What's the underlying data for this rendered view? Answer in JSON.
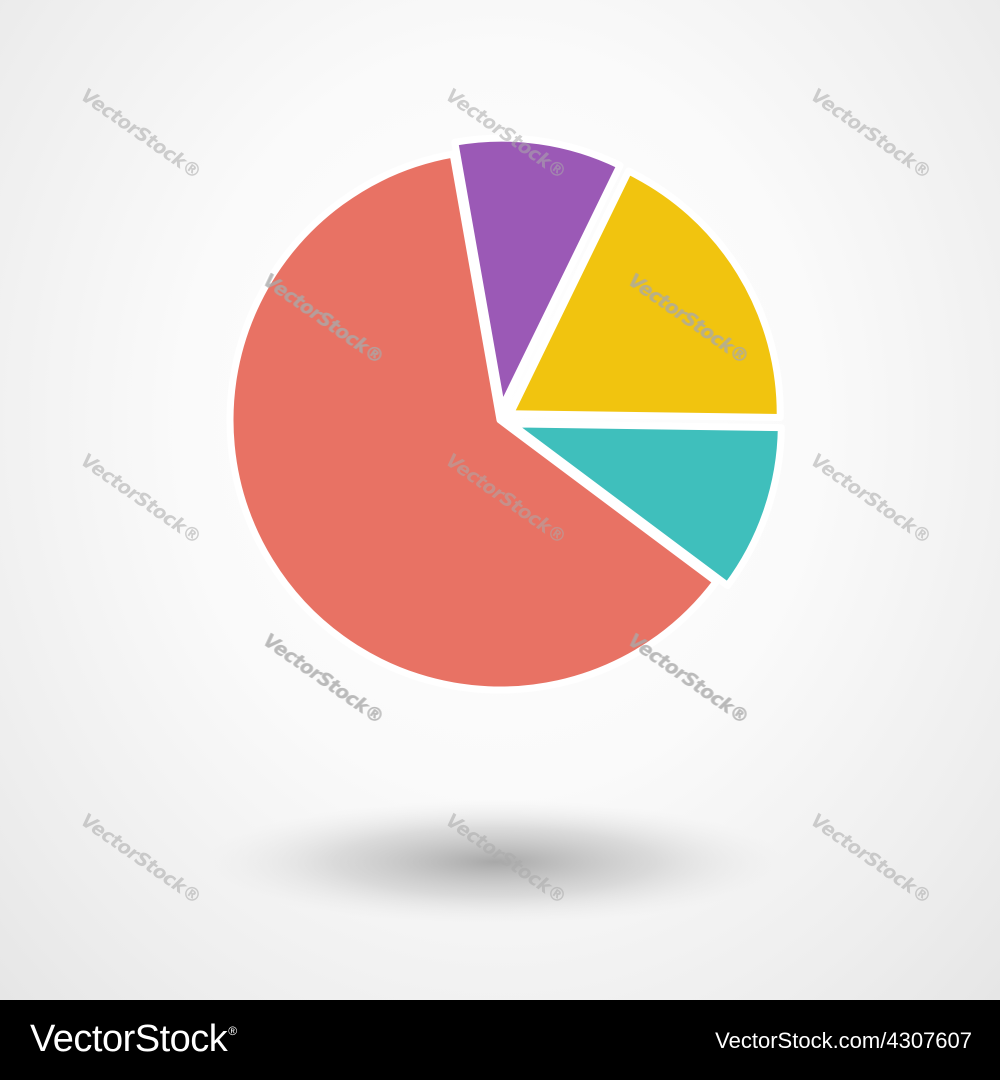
{
  "chart_data": {
    "type": "pie",
    "title": "",
    "start_angle_deg": -10,
    "slices": [
      {
        "value": 10,
        "color": "#9b59b6"
      },
      {
        "value": 18,
        "color": "#f1c40f"
      },
      {
        "value": 10,
        "color": "#3fbfbc"
      },
      {
        "value": 62,
        "color": "#e87264"
      }
    ],
    "explode": [
      true,
      true,
      true,
      false
    ],
    "slice_separator_color": "#ffffff",
    "legend": "none",
    "has_shadow": true
  },
  "watermark": {
    "text": "VectorStock",
    "mark": "®",
    "color": "#aaaaaa"
  },
  "footer": {
    "brand": "VectorStock",
    "brand_mark": "®",
    "url": "VectorStock.com/4307607",
    "background": "#000000",
    "text_color": "#ffffff"
  },
  "colors": {
    "background": "#f4f4f4"
  }
}
